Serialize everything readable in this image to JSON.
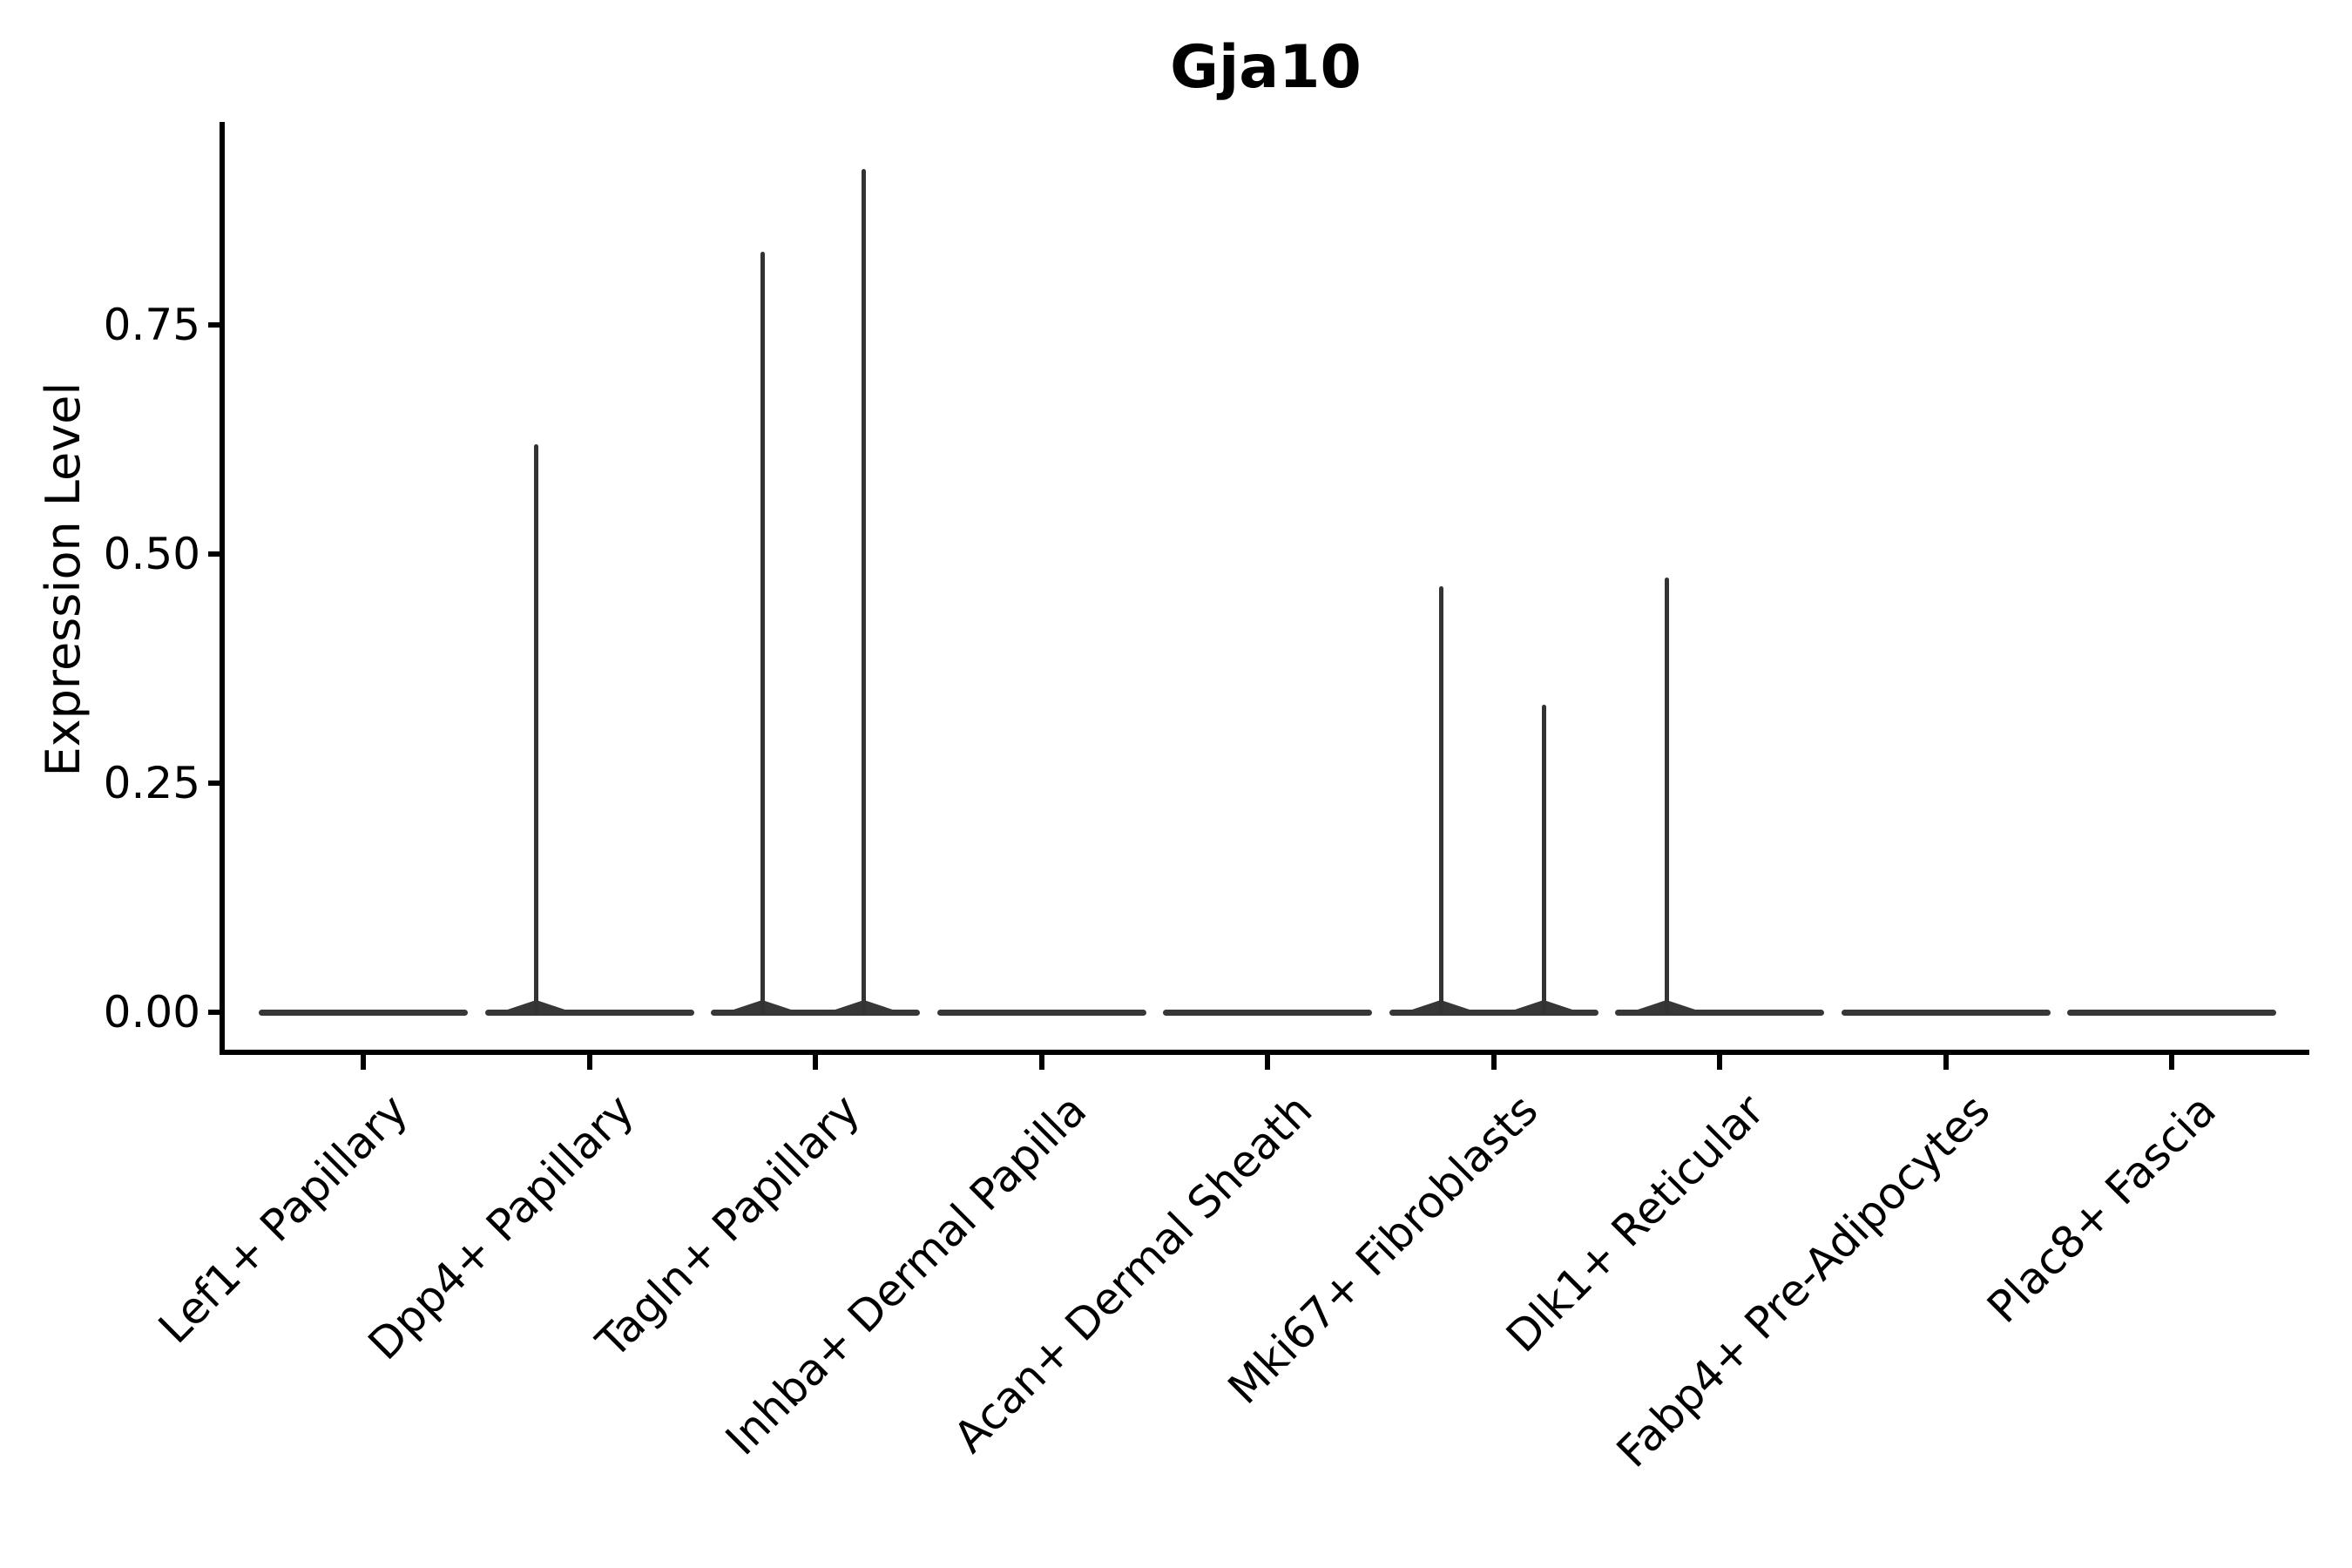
{
  "figure": {
    "title": "Gja10",
    "y_axis": {
      "label": "Expression Level",
      "ticks": [
        {
          "label": "0.00",
          "value": 0.0
        },
        {
          "label": "0.25",
          "value": 0.25
        },
        {
          "label": "0.50",
          "value": 0.5
        },
        {
          "label": "0.75",
          "value": 0.75
        }
      ]
    },
    "x_axis": {
      "categories": [
        "Lef1+ Papillary",
        "Dpp4+ Papillary",
        "Tagln+ Papillary",
        "Inhba+ Dermal Papilla",
        "Acan+ Dermal Sheath",
        "Mki67+ Fibroblasts",
        "Dlk1+ Reticular",
        "Fabp4+ Pre-Adipocytes",
        "Plac8+ Fascia"
      ]
    }
  },
  "chart_data": {
    "type": "violin",
    "title": "Gja10",
    "xlabel": "",
    "ylabel": "Expression Level",
    "ylim": [
      0,
      0.97
    ],
    "grid": false,
    "legend": "none",
    "categories": [
      "Lef1+ Papillary",
      "Dpp4+ Papillary",
      "Tagln+ Papillary",
      "Inhba+ Dermal Papilla",
      "Acan+ Dermal Sheath",
      "Mki67+ Fibroblasts",
      "Dlk1+ Reticular",
      "Fabp4+ Pre-Adipocytes",
      "Plac8+ Fascia"
    ],
    "series": [
      {
        "name": "Lef1+ Papillary",
        "baseline_value": 0,
        "max_expression": 0,
        "spikes": []
      },
      {
        "name": "Dpp4+ Papillary",
        "baseline_value": 0,
        "max_expression": 0.62,
        "spikes": [
          {
            "value": 0.62,
            "x_offset_frac": -0.235
          }
        ]
      },
      {
        "name": "Tagln+ Papillary",
        "baseline_value": 0,
        "max_expression": 0.92,
        "spikes": [
          {
            "value": 0.83,
            "x_offset_frac": -0.235
          },
          {
            "value": 0.92,
            "x_offset_frac": 0.215
          }
        ]
      },
      {
        "name": "Inhba+ Dermal Papilla",
        "baseline_value": 0,
        "max_expression": 0,
        "spikes": []
      },
      {
        "name": "Acan+ Dermal Sheath",
        "baseline_value": 0,
        "max_expression": 0,
        "spikes": []
      },
      {
        "name": "Mki67+ Fibroblasts",
        "baseline_value": 0,
        "max_expression": 0.47,
        "spikes": [
          {
            "value": 0.465,
            "x_offset_frac": -0.233
          },
          {
            "value": 0.335,
            "x_offset_frac": 0.222
          }
        ]
      },
      {
        "name": "Dlk1+ Reticular",
        "baseline_value": 0,
        "max_expression": 0.47,
        "spikes": [
          {
            "value": 0.474,
            "x_offset_frac": -0.235
          }
        ]
      },
      {
        "name": "Fabp4+ Pre-Adipocytes",
        "baseline_value": 0,
        "max_expression": 0,
        "spikes": []
      },
      {
        "name": "Plac8+ Fascia",
        "baseline_value": 0,
        "max_expression": 0,
        "spikes": []
      }
    ],
    "colors": {
      "stroke": "#333333",
      "axis": "#000000",
      "text": "#000000",
      "background": "#ffffff"
    }
  }
}
